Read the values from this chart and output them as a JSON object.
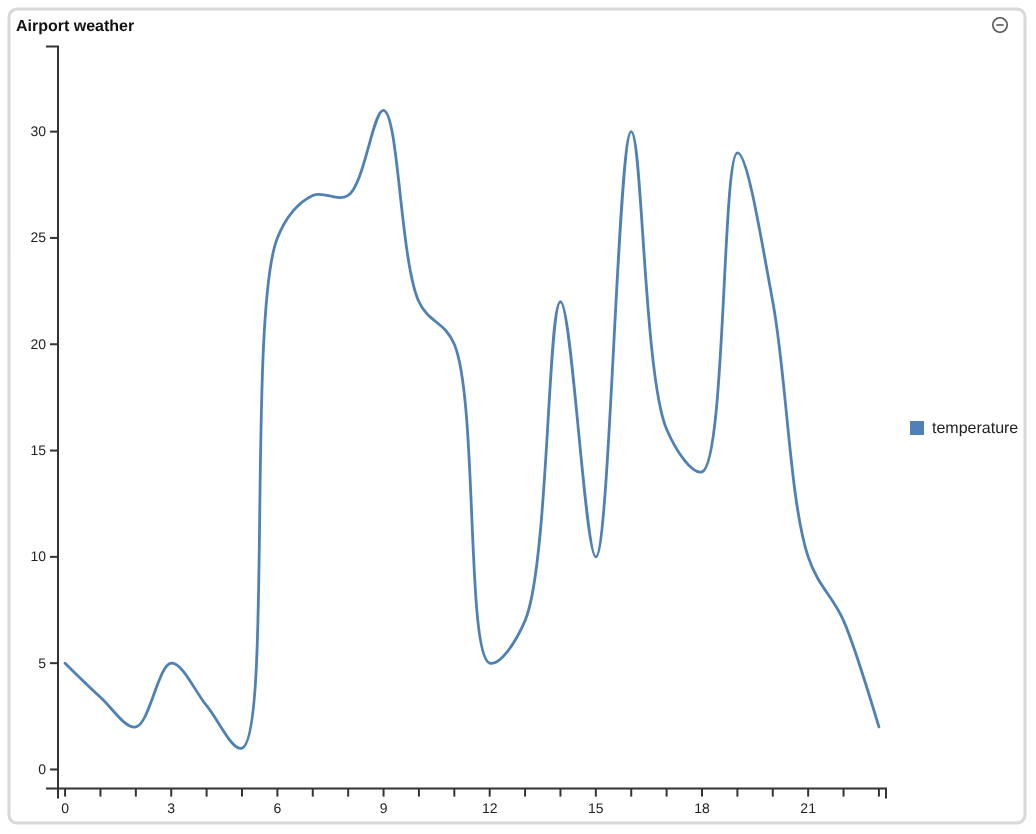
{
  "chart_data": {
    "type": "line",
    "title": "Airport weather",
    "x": [
      0,
      1,
      2,
      3,
      4,
      5,
      6,
      7,
      8,
      9,
      10,
      11,
      12,
      13,
      14,
      15,
      16,
      17,
      18,
      19,
      20,
      21,
      22,
      23
    ],
    "series": [
      {
        "name": "temperature",
        "color": "#4f81b5",
        "values": [
          5,
          3.4,
          2,
          5,
          3,
          1,
          25,
          27,
          27,
          31,
          22,
          20,
          5,
          7,
          22,
          10,
          30,
          16,
          14,
          29,
          22,
          10,
          7,
          2
        ]
      }
    ],
    "xlim": [
      -0.2,
      23.2
    ],
    "ylim": [
      -0.9,
      34
    ],
    "xticks": [
      0,
      {
        "value": 1,
        "label": null
      },
      {
        "value": 2,
        "label": null
      },
      3,
      {
        "value": 4,
        "label": null
      },
      {
        "value": 5,
        "label": null
      },
      6,
      {
        "value": 7,
        "label": null
      },
      {
        "value": 8,
        "label": null
      },
      9,
      {
        "value": 10,
        "label": null
      },
      {
        "value": 11,
        "label": null
      },
      12,
      {
        "value": 13,
        "label": null
      },
      {
        "value": 14,
        "label": null
      },
      15,
      {
        "value": 16,
        "label": null
      },
      {
        "value": 17,
        "label": null
      },
      18,
      {
        "value": 19,
        "label": null
      },
      {
        "value": 20,
        "label": null
      },
      21,
      {
        "value": 22,
        "label": null
      },
      {
        "value": 23,
        "label": null
      }
    ],
    "yticks": [
      0,
      5,
      10,
      15,
      20,
      25,
      30
    ],
    "legend": "right"
  }
}
